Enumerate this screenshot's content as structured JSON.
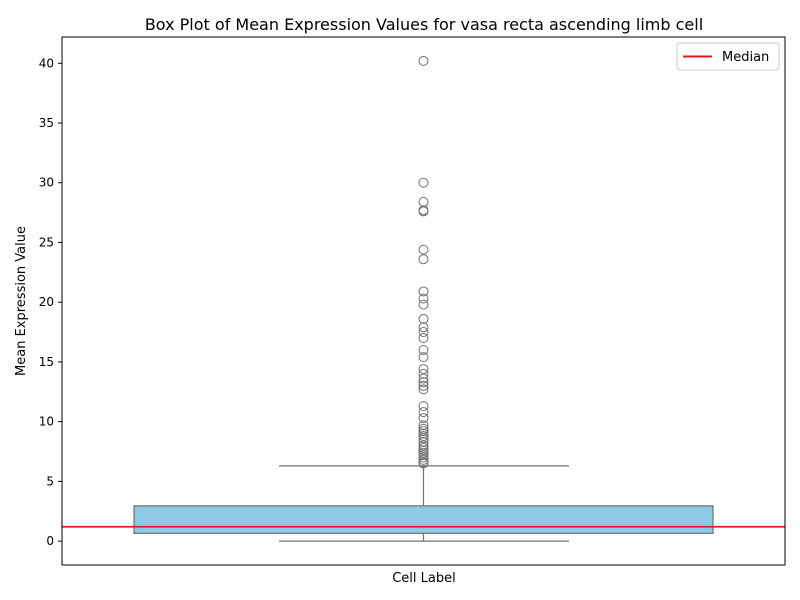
{
  "chart_data": {
    "type": "box",
    "title": "Box Plot of Mean Expression Values for vasa recta ascending limb cell",
    "xlabel": "Cell Label",
    "ylabel": "Mean Expression Value",
    "ylim": [
      -2,
      42.2
    ],
    "yticks": [
      0,
      5,
      10,
      15,
      20,
      25,
      30,
      35,
      40
    ],
    "grid": false,
    "legend": {
      "position": "top-right",
      "entries": [
        {
          "label": "Median",
          "color": "#e41a1c",
          "marker": "line"
        }
      ]
    },
    "box": {
      "whisker_low": 0.0,
      "q1": 0.65,
      "median": 1.2,
      "q3": 2.95,
      "whisker_high": 6.3,
      "fill_color": "#8ecae6",
      "edge_color": "#707070"
    },
    "median_line": {
      "value": 1.2,
      "color": "#e41a1c"
    },
    "outliers": [
      6.5,
      6.6,
      6.8,
      7.0,
      7.2,
      7.4,
      7.6,
      7.8,
      8.0,
      8.3,
      8.6,
      8.8,
      9.0,
      9.2,
      9.4,
      9.7,
      10.3,
      10.8,
      11.3,
      12.7,
      13.0,
      13.3,
      13.6,
      14.0,
      14.4,
      15.4,
      16.0,
      17.0,
      17.5,
      17.9,
      18.6,
      19.8,
      20.3,
      20.9,
      23.6,
      24.4,
      27.6,
      27.7,
      28.4,
      30.0,
      40.2
    ]
  }
}
